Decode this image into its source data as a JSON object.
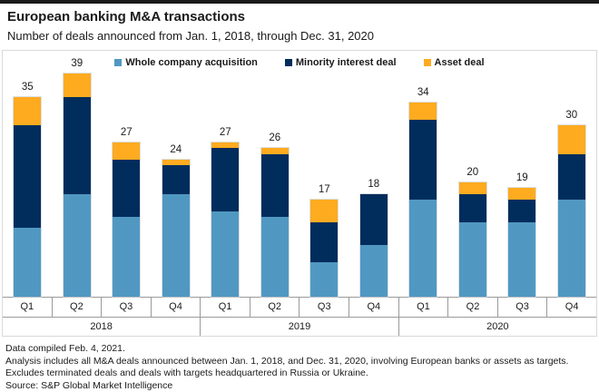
{
  "page": {
    "title": "European banking M&A transactions",
    "subtitle": "Number of deals announced from Jan. 1, 2018, through Dec. 31, 2020"
  },
  "footer": {
    "lines": [
      "Data compiled Feb. 4, 2021.",
      "Analysis includes all M&A deals announced between Jan. 1, 2018, and Dec. 31, 2020, involving European banks or assets as targets.",
      "Excludes terminated deals and deals with targets headquartered in Russia or Ukraine.",
      "Source: S&P Global Market Intelligence"
    ]
  },
  "chart_data": {
    "type": "bar",
    "stacked": true,
    "title": "European banking M&A transactions",
    "subtitle": "Number of deals announced from Jan. 1, 2018, through Dec. 31, 2020",
    "legend_position": "top-center",
    "grid": false,
    "y_axis_shown": false,
    "ylim": [
      0,
      39
    ],
    "categories": [
      "Q1",
      "Q2",
      "Q3",
      "Q4",
      "Q1",
      "Q2",
      "Q3",
      "Q4",
      "Q1",
      "Q2",
      "Q3",
      "Q4"
    ],
    "year_groups": [
      {
        "label": "2018",
        "span": 4
      },
      {
        "label": "2019",
        "span": 4
      },
      {
        "label": "2020",
        "span": 4
      }
    ],
    "series": [
      {
        "name": "Whole company acquisition",
        "color": "#5098C2",
        "values": [
          12,
          18,
          14,
          18,
          15,
          14,
          6,
          9,
          17,
          13,
          13,
          17
        ]
      },
      {
        "name": "Minority interest deal",
        "color": "#002D5C",
        "values": [
          18,
          17,
          10,
          5,
          11,
          11,
          7,
          9,
          14,
          5,
          4,
          8
        ]
      },
      {
        "name": "Asset deal",
        "color": "#FFAB20",
        "values": [
          5,
          4,
          3,
          1,
          1,
          1,
          4,
          0,
          3,
          2,
          2,
          5
        ]
      }
    ],
    "totals": [
      35,
      39,
      27,
      24,
      27,
      26,
      17,
      18,
      34,
      20,
      19,
      30
    ]
  }
}
